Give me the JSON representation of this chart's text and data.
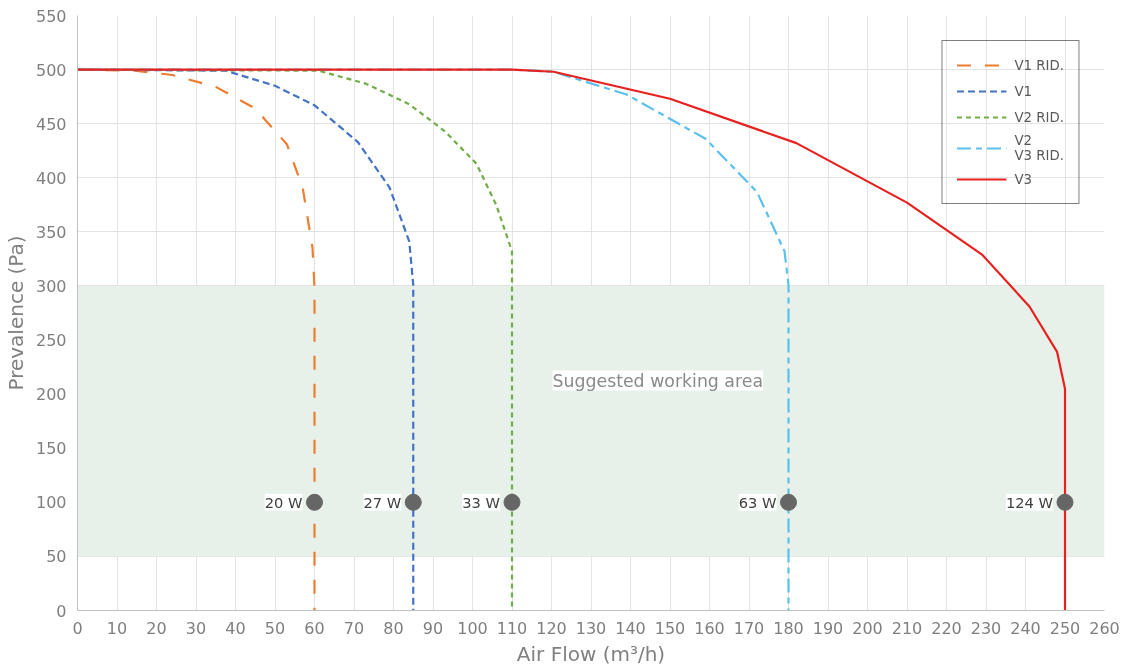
{
  "chart_data": {
    "type": "line",
    "xlabel": "Air Flow (m³/h)",
    "ylabel": "Prevalence (Pa)",
    "xlim": [
      0,
      260
    ],
    "xticks": [
      0,
      10,
      20,
      30,
      40,
      50,
      60,
      70,
      80,
      90,
      100,
      110,
      120,
      130,
      140,
      150,
      160,
      170,
      180,
      190,
      200,
      210,
      220,
      230,
      240,
      250,
      260
    ],
    "ylim": [
      0,
      550
    ],
    "yticks": [
      0,
      50,
      100,
      150,
      200,
      250,
      300,
      350,
      400,
      450,
      500,
      550
    ],
    "grid": true,
    "legend": "top right",
    "marker": "none",
    "bands": [
      {
        "axis": "y",
        "from": 50,
        "to": 300,
        "label": "Suggested working area",
        "color": "#e7f0e9"
      }
    ],
    "annotations": [
      {
        "text": "20 W",
        "x": 60,
        "y": 100
      },
      {
        "text": "27 W",
        "x": 85,
        "y": 100
      },
      {
        "text": "33 W",
        "x": 110,
        "y": 100
      },
      {
        "text": "63 W",
        "x": 180,
        "y": 100
      },
      {
        "text": "124 W",
        "x": 250,
        "y": 100
      }
    ],
    "series": [
      {
        "name": "V1 RID.",
        "color": "#ed7d31",
        "line_style": "dashed",
        "x": [
          0,
          14.5,
          24,
          35,
          45,
          53,
          57,
          59.5,
          60,
          60
        ],
        "values": [
          500,
          499,
          495,
          484,
          464,
          431,
          391,
          335,
          298,
          0
        ]
      },
      {
        "name": "V1",
        "color": "#4472c4",
        "line_style": "dashed",
        "x": [
          0,
          37.5,
          50,
          60,
          71,
          79,
          84,
          85,
          85
        ],
        "values": [
          500,
          499,
          485,
          467,
          433,
          391,
          341,
          301,
          0
        ]
      },
      {
        "name": "V2 RID.",
        "color": "#70ad47",
        "line_style": "dashed",
        "x": [
          0,
          61,
          73,
          84,
          93,
          101,
          106,
          110,
          110,
          110
        ],
        "values": [
          500,
          499,
          487,
          468,
          443,
          413,
          375,
          332,
          300,
          0
        ]
      },
      {
        "name": "V2\nV3 RID.",
        "color": "#5bc0eb",
        "line_style": "dashed",
        "x": [
          0,
          110,
          120.5,
          139,
          159,
          172,
          179,
          180,
          180
        ],
        "values": [
          500,
          500,
          498,
          477,
          436,
          387,
          332,
          301,
          0
        ]
      },
      {
        "name": "V3",
        "color": "#e8201e",
        "line_style": "solid",
        "x": [
          0,
          110,
          120.5,
          150,
          182,
          210,
          229,
          241,
          248,
          250,
          250,
          250
        ],
        "values": [
          500,
          500,
          498,
          473,
          432,
          377,
          329,
          281,
          239,
          205,
          190,
          0
        ]
      },
      {
        "type": "scatter",
        "color": "#666666",
        "marker": "circle",
        "x": [
          60,
          85,
          110,
          180,
          250
        ],
        "values": [
          100,
          100,
          100,
          100,
          100
        ]
      }
    ]
  }
}
